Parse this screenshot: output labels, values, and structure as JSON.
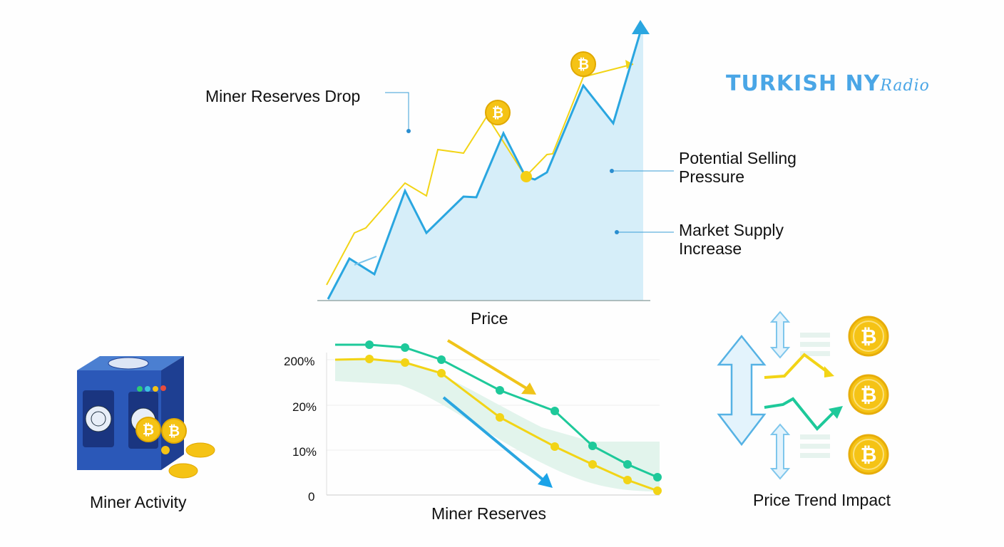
{
  "logo": {
    "main": "TURKISH NY",
    "script": "Radio"
  },
  "top_chart": {
    "xlabel": "Price",
    "annotations": [
      "Miner Reserves Drop",
      "Potential Selling Pressure",
      "Market Supply Increase"
    ]
  },
  "bottom_chart": {
    "xlabel": "Miner Reserves",
    "yticks": [
      "200%",
      "20%",
      "10%",
      "0"
    ]
  },
  "left_panel": {
    "label": "Miner Activity"
  },
  "right_panel": {
    "label": "Price Trend Impact"
  },
  "colors": {
    "blue": "#2aa6e0",
    "yellow": "#f2d416",
    "teal": "#1ec99a",
    "fill": "#d6eef9",
    "coin": "#f5c315"
  }
}
